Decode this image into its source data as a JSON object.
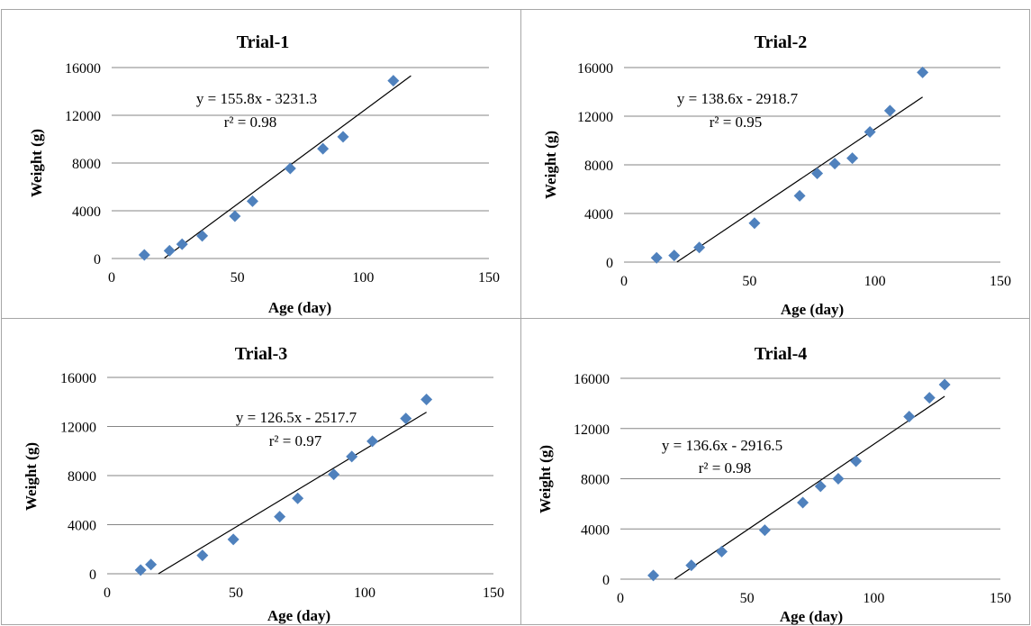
{
  "chart_data": [
    {
      "type": "scatter",
      "title": "Trial-1",
      "xlabel": "Age (day)",
      "ylabel": "Weight (g)",
      "xlim": [
        0,
        150
      ],
      "ylim": [
        0,
        16000
      ],
      "xticks": [
        "0",
        "50",
        "100",
        "150"
      ],
      "yticks": [
        "0",
        "4000",
        "8000",
        "12000",
        "16000"
      ],
      "grid": "horizontal",
      "marker": "diamond",
      "marker_color": "#4f81bd",
      "series": [
        {
          "x": [
            13,
            23,
            28,
            36,
            49,
            56,
            71,
            84,
            92,
            112
          ],
          "y": [
            300,
            650,
            1200,
            1900,
            3550,
            4800,
            7550,
            9200,
            10200,
            14900
          ]
        }
      ],
      "trendline": {
        "slope": 155.8,
        "intercept": -3231.3,
        "x_range": [
          21,
          119
        ]
      },
      "equation": "y = 155.8x - 3231.3",
      "r2": "r² = 0.98"
    },
    {
      "type": "scatter",
      "title": "Trial-2",
      "xlabel": "Age (day)",
      "ylabel": "Weight (g)",
      "xlim": [
        0,
        150
      ],
      "ylim": [
        0,
        16000
      ],
      "xticks": [
        "0",
        "50",
        "100",
        "150"
      ],
      "yticks": [
        "0",
        "4000",
        "8000",
        "12000",
        "16000"
      ],
      "grid": "horizontal",
      "marker": "diamond",
      "marker_color": "#4f81bd",
      "series": [
        {
          "x": [
            13,
            20,
            30,
            52,
            70,
            77,
            84,
            91,
            98,
            106,
            119
          ],
          "y": [
            350,
            550,
            1200,
            3200,
            5450,
            7300,
            8100,
            8550,
            10700,
            12450,
            15600
          ]
        }
      ],
      "trendline": {
        "slope": 138.6,
        "intercept": -2918.7,
        "x_range": [
          21.1,
          119
        ]
      },
      "equation": "y = 138.6x - 2918.7",
      "r2": "r² = 0.95"
    },
    {
      "type": "scatter",
      "title": "Trial-3",
      "xlabel": "Age (day)",
      "ylabel": "Weight (g)",
      "xlim": [
        0,
        150
      ],
      "ylim": [
        0,
        16000
      ],
      "xticks": [
        "0",
        "50",
        "100",
        "150"
      ],
      "yticks": [
        "0",
        "4000",
        "8000",
        "12000",
        "16000"
      ],
      "grid": "horizontal",
      "marker": "diamond",
      "marker_color": "#4f81bd",
      "series": [
        {
          "x": [
            13,
            17,
            37,
            49,
            67,
            74,
            88,
            95,
            103,
            116,
            124
          ],
          "y": [
            300,
            750,
            1500,
            2800,
            4650,
            6150,
            8100,
            9550,
            10800,
            12650,
            14200
          ]
        }
      ],
      "trendline": {
        "slope": 126.5,
        "intercept": -2517.7,
        "x_range": [
          19.9,
          124
        ]
      },
      "equation": "y = 126.5x - 2517.7",
      "r2": "r² = 0.97"
    },
    {
      "type": "scatter",
      "title": "Trial-4",
      "xlabel": "Age (day)",
      "ylabel": "Weight (g)",
      "xlim": [
        0,
        150
      ],
      "ylim": [
        0,
        16000
      ],
      "xticks": [
        "0",
        "50",
        "100",
        "150"
      ],
      "yticks": [
        "0",
        "4000",
        "8000",
        "12000",
        "16000"
      ],
      "grid": "horizontal",
      "marker": "diamond",
      "marker_color": "#4f81bd",
      "series": [
        {
          "x": [
            13,
            28,
            40,
            57,
            72,
            79,
            86,
            93,
            114,
            122,
            128
          ],
          "y": [
            300,
            1100,
            2200,
            3900,
            6100,
            7400,
            8000,
            9400,
            12950,
            14450,
            15500
          ]
        }
      ],
      "trendline": {
        "slope": 136.6,
        "intercept": -2916.5,
        "x_range": [
          21.4,
          128
        ]
      },
      "equation": "y = 136.6x - 2916.5",
      "r2": "r² = 0.98"
    }
  ]
}
